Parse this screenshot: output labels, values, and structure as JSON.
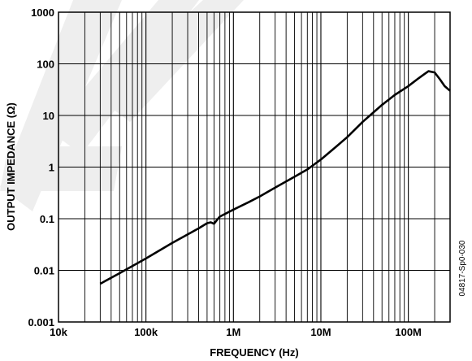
{
  "chart_data": {
    "type": "line",
    "title": "",
    "xlabel": "FREQUENCY (Hz)",
    "ylabel": "OUTPUT IMPEDANCE (Ω)",
    "x_scale": "log",
    "y_scale": "log",
    "xlim": [
      10000,
      300000000
    ],
    "ylim": [
      0.001,
      1000
    ],
    "grid": true,
    "x_ticks": [
      {
        "value": 10000,
        "label": "10k"
      },
      {
        "value": 100000,
        "label": "100k"
      },
      {
        "value": 1000000,
        "label": "1M"
      },
      {
        "value": 10000000,
        "label": "10M"
      },
      {
        "value": 100000000,
        "label": "100M"
      }
    ],
    "y_ticks": [
      {
        "value": 0.001,
        "label": "0.001"
      },
      {
        "value": 0.01,
        "label": "0.01"
      },
      {
        "value": 0.1,
        "label": "0.1"
      },
      {
        "value": 1,
        "label": "1"
      },
      {
        "value": 10,
        "label": "10"
      },
      {
        "value": 100,
        "label": "100"
      },
      {
        "value": 1000,
        "label": "1000"
      }
    ],
    "series": [
      {
        "color": "#000000",
        "x": [
          30000,
          50000,
          100000,
          200000,
          400000,
          500000,
          550000,
          600000,
          650000,
          700000,
          1000000,
          1500000,
          2000000,
          3000000,
          5000000,
          7000000,
          10000000,
          15000000,
          20000000,
          30000000,
          50000000,
          70000000,
          100000000,
          130000000,
          150000000,
          170000000,
          200000000,
          230000000,
          260000000,
          300000000
        ],
        "y": [
          0.0055,
          0.0088,
          0.017,
          0.034,
          0.065,
          0.082,
          0.085,
          0.08,
          0.095,
          0.11,
          0.15,
          0.21,
          0.27,
          0.4,
          0.65,
          0.9,
          1.4,
          2.5,
          3.8,
          7.5,
          16,
          25,
          37,
          52,
          62,
          72,
          68,
          50,
          37,
          30
        ]
      }
    ]
  },
  "watermark_code": "04817-Sp0-030"
}
